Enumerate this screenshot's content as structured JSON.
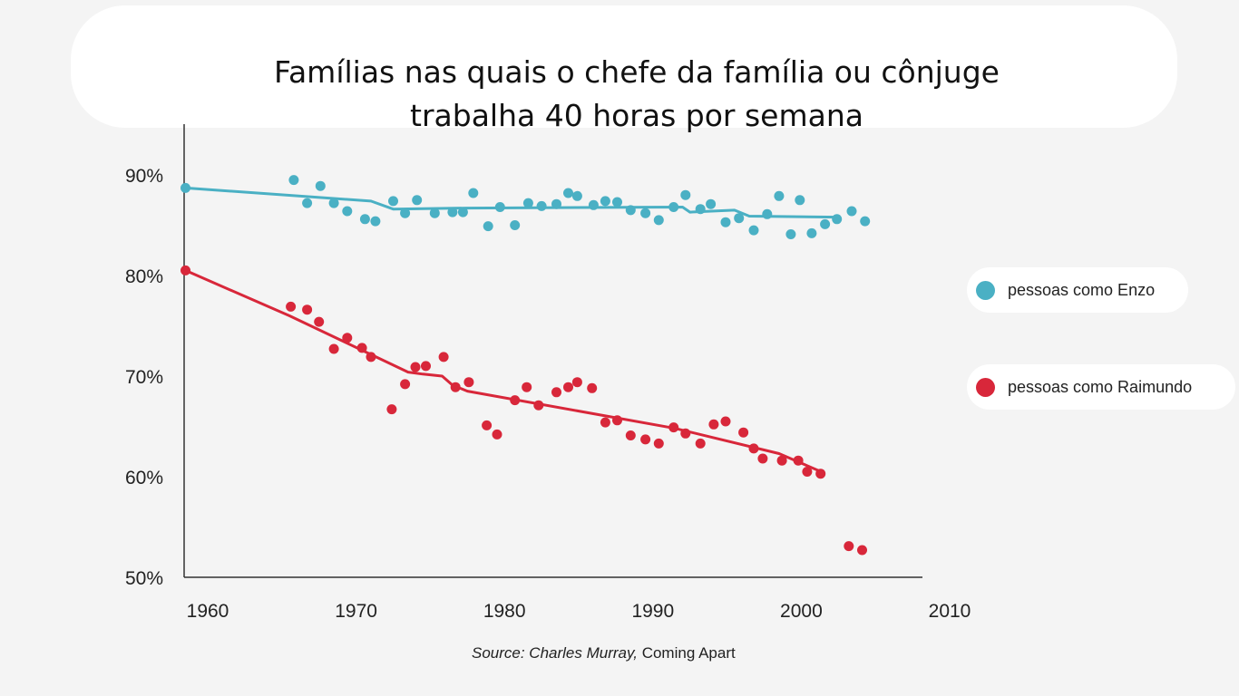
{
  "title": {
    "line1": "Famílias nas quais o chefe da família ou cônjuge",
    "line2": "trabalha 40 horas por semana"
  },
  "source": {
    "prefix": "Source: Charles Murray,",
    "book": "Coming Apart"
  },
  "legend": [
    {
      "label": "pessoas como Enzo",
      "color": "#4ab0c4"
    },
    {
      "label": "pessoas como Raimundo",
      "color": "#d8273a"
    }
  ],
  "chart_data": {
    "type": "scatter",
    "title": "Famílias nas quais o chefe da família ou cônjuge trabalha 40 horas por semana",
    "xlabel": "",
    "ylabel": "",
    "xlim": [
      1960,
      2010
    ],
    "ylim": [
      50,
      95
    ],
    "x_ticks": [
      1960,
      1970,
      1980,
      1990,
      2000,
      2010
    ],
    "y_ticks": [
      50,
      60,
      70,
      80,
      90
    ],
    "y_tick_labels": [
      "50%",
      "60%",
      "70%",
      "80%",
      "90%"
    ],
    "legend_position": "right",
    "grid": false,
    "series": [
      {
        "name": "pessoas como Enzo",
        "color": "#4ab0c4",
        "points": [
          [
            1958.5,
            88.7
          ],
          [
            1965.8,
            89.5
          ],
          [
            1966.7,
            87.2
          ],
          [
            1967.6,
            88.9
          ],
          [
            1968.5,
            87.2
          ],
          [
            1969.4,
            86.4
          ],
          [
            1970.6,
            85.6
          ],
          [
            1971.3,
            85.4
          ],
          [
            1972.5,
            87.4
          ],
          [
            1973.3,
            86.2
          ],
          [
            1974.1,
            87.5
          ],
          [
            1975.3,
            86.2
          ],
          [
            1976.5,
            86.3
          ],
          [
            1977.2,
            86.3
          ],
          [
            1977.9,
            88.2
          ],
          [
            1978.9,
            84.9
          ],
          [
            1979.7,
            86.8
          ],
          [
            1980.7,
            85.0
          ],
          [
            1981.6,
            87.2
          ],
          [
            1982.5,
            86.9
          ],
          [
            1983.5,
            87.1
          ],
          [
            1984.3,
            88.2
          ],
          [
            1984.9,
            87.9
          ],
          [
            1986.0,
            87.0
          ],
          [
            1986.8,
            87.4
          ],
          [
            1987.6,
            87.3
          ],
          [
            1988.5,
            86.5
          ],
          [
            1989.5,
            86.2
          ],
          [
            1990.4,
            85.5
          ],
          [
            1991.4,
            86.8
          ],
          [
            1992.2,
            88.0
          ],
          [
            1993.2,
            86.6
          ],
          [
            1993.9,
            87.1
          ],
          [
            1994.9,
            85.3
          ],
          [
            1995.8,
            85.7
          ],
          [
            1996.8,
            84.5
          ],
          [
            1997.7,
            86.1
          ],
          [
            1998.5,
            87.9
          ],
          [
            1999.3,
            84.1
          ],
          [
            1999.9,
            87.5
          ],
          [
            2000.7,
            84.2
          ],
          [
            2001.6,
            85.1
          ],
          [
            2002.4,
            85.6
          ],
          [
            2003.4,
            86.4
          ],
          [
            2004.3,
            85.4
          ]
        ],
        "trend": [
          [
            1958.5,
            88.7
          ],
          [
            1971.0,
            87.4
          ],
          [
            1972.5,
            86.6
          ],
          [
            1977.5,
            86.7
          ],
          [
            1992.0,
            86.8
          ],
          [
            1992.5,
            86.3
          ],
          [
            1995.5,
            86.5
          ],
          [
            1996.5,
            85.9
          ],
          [
            2002.5,
            85.8
          ]
        ]
      },
      {
        "name": "pessoas como Raimundo",
        "color": "#d8273a",
        "points": [
          [
            1958.5,
            80.5
          ],
          [
            1965.6,
            76.9
          ],
          [
            1966.7,
            76.6
          ],
          [
            1967.5,
            75.4
          ],
          [
            1968.5,
            72.7
          ],
          [
            1969.4,
            73.8
          ],
          [
            1970.4,
            72.8
          ],
          [
            1971.0,
            71.9
          ],
          [
            1972.4,
            66.7
          ],
          [
            1973.3,
            69.2
          ],
          [
            1974.0,
            70.9
          ],
          [
            1974.7,
            71.0
          ],
          [
            1975.9,
            71.9
          ],
          [
            1976.7,
            68.9
          ],
          [
            1977.6,
            69.4
          ],
          [
            1978.8,
            65.1
          ],
          [
            1979.5,
            64.2
          ],
          [
            1980.7,
            67.6
          ],
          [
            1981.5,
            68.9
          ],
          [
            1982.3,
            67.1
          ],
          [
            1983.5,
            68.4
          ],
          [
            1984.3,
            68.9
          ],
          [
            1984.9,
            69.4
          ],
          [
            1985.9,
            68.8
          ],
          [
            1986.8,
            65.4
          ],
          [
            1987.6,
            65.6
          ],
          [
            1988.5,
            64.1
          ],
          [
            1989.5,
            63.7
          ],
          [
            1990.4,
            63.3
          ],
          [
            1991.4,
            64.9
          ],
          [
            1992.2,
            64.3
          ],
          [
            1993.2,
            63.3
          ],
          [
            1994.1,
            65.2
          ],
          [
            1994.9,
            65.5
          ],
          [
            1996.1,
            64.4
          ],
          [
            1996.8,
            62.8
          ],
          [
            1997.4,
            61.8
          ],
          [
            1998.7,
            61.6
          ],
          [
            1999.8,
            61.6
          ],
          [
            2000.4,
            60.5
          ],
          [
            2001.3,
            60.3
          ],
          [
            2003.2,
            53.1
          ],
          [
            2004.1,
            52.7
          ]
        ],
        "trend": [
          [
            1958.5,
            80.5
          ],
          [
            1965.5,
            76.0
          ],
          [
            1973.5,
            70.4
          ],
          [
            1974.5,
            70.2
          ],
          [
            1975.8,
            70.0
          ],
          [
            1976.5,
            69.1
          ],
          [
            1977.5,
            68.5
          ],
          [
            1991.5,
            64.8
          ],
          [
            1998.5,
            62.3
          ],
          [
            2001.5,
            60.4
          ]
        ]
      }
    ]
  }
}
